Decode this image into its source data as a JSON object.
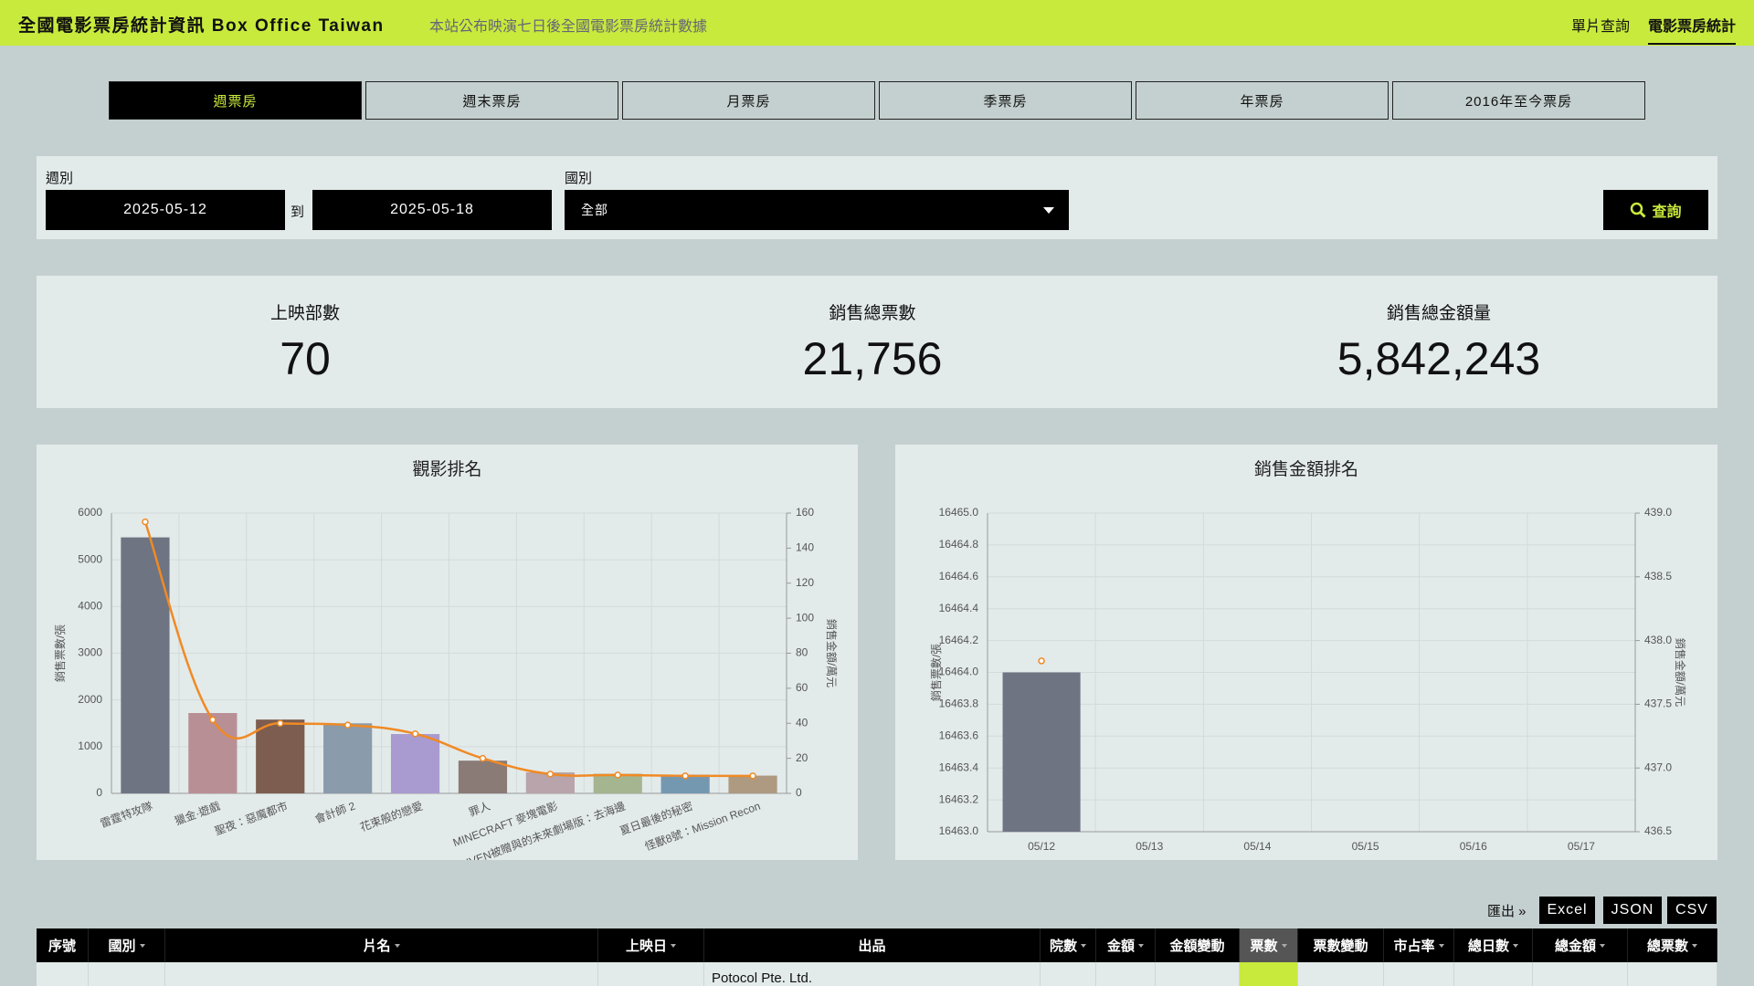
{
  "header": {
    "title": "全國電影票房統計資訊 Box Office Taiwan",
    "subtitle": "本站公布映演七日後全國電影票房統計數據",
    "nav": [
      "單片查詢",
      "電影票房統計"
    ]
  },
  "tabs": [
    "週票房",
    "週末票房",
    "月票房",
    "季票房",
    "年票房",
    "2016年至今票房"
  ],
  "filters": {
    "week_label": "週別",
    "start": "2025-05-12",
    "to": "到",
    "end": "2025-05-18",
    "country_label": "國別",
    "country": "全部",
    "search": "查詢"
  },
  "stats": [
    {
      "label": "上映部數",
      "value": "70"
    },
    {
      "label": "銷售總票數",
      "value": "21,756"
    },
    {
      "label": "銷售總金額量",
      "value": "5,842,243"
    }
  ],
  "chart_data": [
    {
      "type": "bar",
      "title": "觀影排名",
      "ylabel": "銷售票數/張",
      "y2label": "銷售金額/萬元",
      "categories": [
        "雷霆特攻隊",
        "獵金·遊戲",
        "聖夜：惡魔都市",
        "會計師 2",
        "花束般的戀愛",
        "罪人",
        "MINECRAFT 麥塊電影",
        "GIVEN被贈與的未來劇場版：去海邊",
        "夏日最後的秘密",
        "怪獸8號：Mission Recon"
      ],
      "series": [
        {
          "colors": [
            "#6e7482",
            "#b98f96",
            "#7c5d50",
            "#8a9bab",
            "#a99bd0",
            "#8a7b76",
            "#b8a4aa",
            "#a5b590",
            "#7598b1",
            "#ad9a81"
          ],
          "values": [
            5480,
            1720,
            1580,
            1500,
            1270,
            700,
            450,
            420,
            400,
            380
          ]
        },
        {
          "type": "line",
          "axis": "y2",
          "color": "#f08a24",
          "values": [
            155,
            42,
            40,
            39,
            34,
            20,
            11,
            10.5,
            10,
            10
          ]
        }
      ],
      "ylim": [
        0,
        6000
      ],
      "yticks": [
        0,
        1000,
        2000,
        3000,
        4000,
        5000,
        6000
      ],
      "y2lim": [
        0,
        160
      ],
      "y2ticks": [
        0,
        20,
        40,
        60,
        80,
        100,
        120,
        140,
        160
      ],
      "grid": true
    },
    {
      "type": "bar",
      "title": "銷售金額排名",
      "ylabel": "銷售票數/張",
      "y2label": "銷售金額/萬元",
      "categories": [
        "05/12",
        "05/13",
        "05/14",
        "05/15",
        "05/16",
        "05/17"
      ],
      "series": [
        {
          "colors": [
            "#6e7482"
          ],
          "values": [
            16464.0,
            null,
            null,
            null,
            null,
            null
          ]
        },
        {
          "type": "line",
          "axis": "y2",
          "color": "#f08a24",
          "values": [
            437.84,
            null,
            null,
            null,
            null,
            null
          ]
        }
      ],
      "ylim": [
        16463.0,
        16465.0
      ],
      "yticks": [
        {
          "value": 16463,
          "label": "16463.0"
        },
        16463.2,
        16463.4,
        16463.6,
        16463.8,
        {
          "value": 16464,
          "label": "16464.0"
        },
        16464.2,
        16464.4,
        16464.6,
        16464.8,
        {
          "value": 16465,
          "label": "16465.0"
        }
      ],
      "y2lim": [
        436.5,
        439.0
      ],
      "y2ticks": [
        436.5,
        {
          "value": 437,
          "label": "437.0"
        },
        437.5,
        {
          "value": 438,
          "label": "438.0"
        },
        438.5,
        {
          "value": 439,
          "label": "439.0"
        }
      ],
      "grid": true
    }
  ],
  "export": {
    "label": "匯出 »",
    "buttons": [
      "Excel",
      "JSON",
      "CSV"
    ]
  },
  "table": {
    "columns": [
      "序號",
      "國別",
      "片名",
      "上映日",
      "出品",
      "院數",
      "金額",
      "金額變動",
      "票數",
      "票數變動",
      "市占率",
      "總日數",
      "總金額",
      "總票數"
    ],
    "rows": [
      {
        "publisher": "Potocol Pte. Ltd."
      }
    ]
  }
}
